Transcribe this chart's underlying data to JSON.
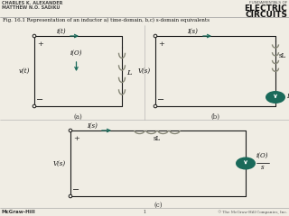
{
  "title": "Fig. 16.1 Representation of an inductor a) time-domain, b,c) s-domain equivalents",
  "header_left1": "CHARLES K. ALEXANDER",
  "header_left2": "MATTHEW N.O. SADIKU",
  "header_right_small": "FUNDAMENTALS OF",
  "header_right_bold1": "ELECTRIC",
  "header_right_bold2": "CIRCUITS",
  "footer_left": "McGraw-Hill",
  "footer_center": "1",
  "footer_right": "© The McGraw-Hill Companies, Inc.",
  "bg_color": "#f0ede4",
  "circuit_line_color": "#1a1a1a",
  "arrow_color": "#1a6a5a",
  "inductor_color": "#888878",
  "source_color": "#1a6a5a",
  "text_color": "#111111",
  "divider_color": "#aaaaaa",
  "label_italic_color": "#222222"
}
